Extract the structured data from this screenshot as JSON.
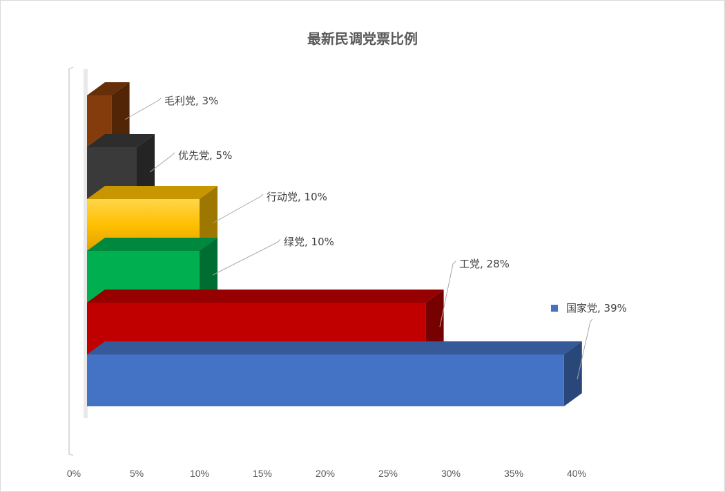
{
  "chart_data": {
    "type": "bar",
    "orientation": "horizontal",
    "stacked": true,
    "style": "3d",
    "title": "最新民调党票比例",
    "xlim": [
      0,
      40
    ],
    "x_ticks": [
      "0%",
      "5%",
      "10%",
      "15%",
      "20%",
      "25%",
      "30%",
      "35%",
      "40%"
    ],
    "grid": false,
    "series": [
      {
        "name": "国家党",
        "value": 39,
        "label": "国家党, 39%",
        "color": "#4472c4",
        "legend_key": true
      },
      {
        "name": "工党",
        "value": 28,
        "label": "工党, 28%",
        "color": "#c00000"
      },
      {
        "name": "绿党",
        "value": 10,
        "label": "绿党, 10%",
        "color": "#00b050"
      },
      {
        "name": "行动党",
        "value": 10,
        "label": "行动党, 10%",
        "color": "#ffc000"
      },
      {
        "name": "优先党",
        "value": 5,
        "label": "优先党, 5%",
        "color": "#3a3a3a"
      },
      {
        "name": "毛利党",
        "value": 3,
        "label": "毛利党, 3%",
        "color": "#843c0c"
      }
    ]
  }
}
